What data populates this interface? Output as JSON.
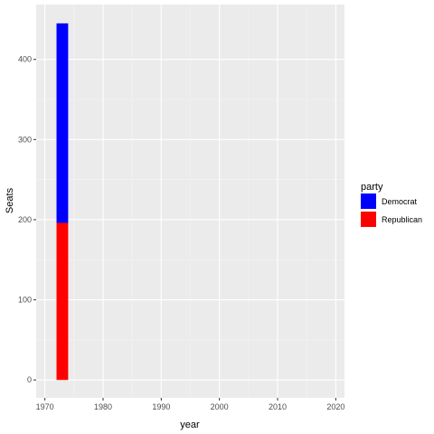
{
  "chart_data": {
    "type": "bar",
    "stacked": true,
    "xlabel": "year",
    "ylabel": "Seats",
    "xlim": [
      1970,
      2020
    ],
    "ylim": [
      0,
      450
    ],
    "xticks": [
      1970,
      1980,
      1990,
      2000,
      2010,
      2020
    ],
    "yticks": [
      0,
      100,
      200,
      300,
      400
    ],
    "grid": true,
    "legend": {
      "title": "party",
      "position": "right",
      "entries": [
        {
          "label": "Democrat",
          "color": "#0000ff"
        },
        {
          "label": "Republican",
          "color": "#ff0000"
        }
      ]
    },
    "categories": [
      1973
    ],
    "series": [
      {
        "name": "Republican",
        "color": "#ff0000",
        "values": [
          196
        ]
      },
      {
        "name": "Democrat",
        "color": "#0000ff",
        "values": [
          249
        ]
      }
    ]
  }
}
